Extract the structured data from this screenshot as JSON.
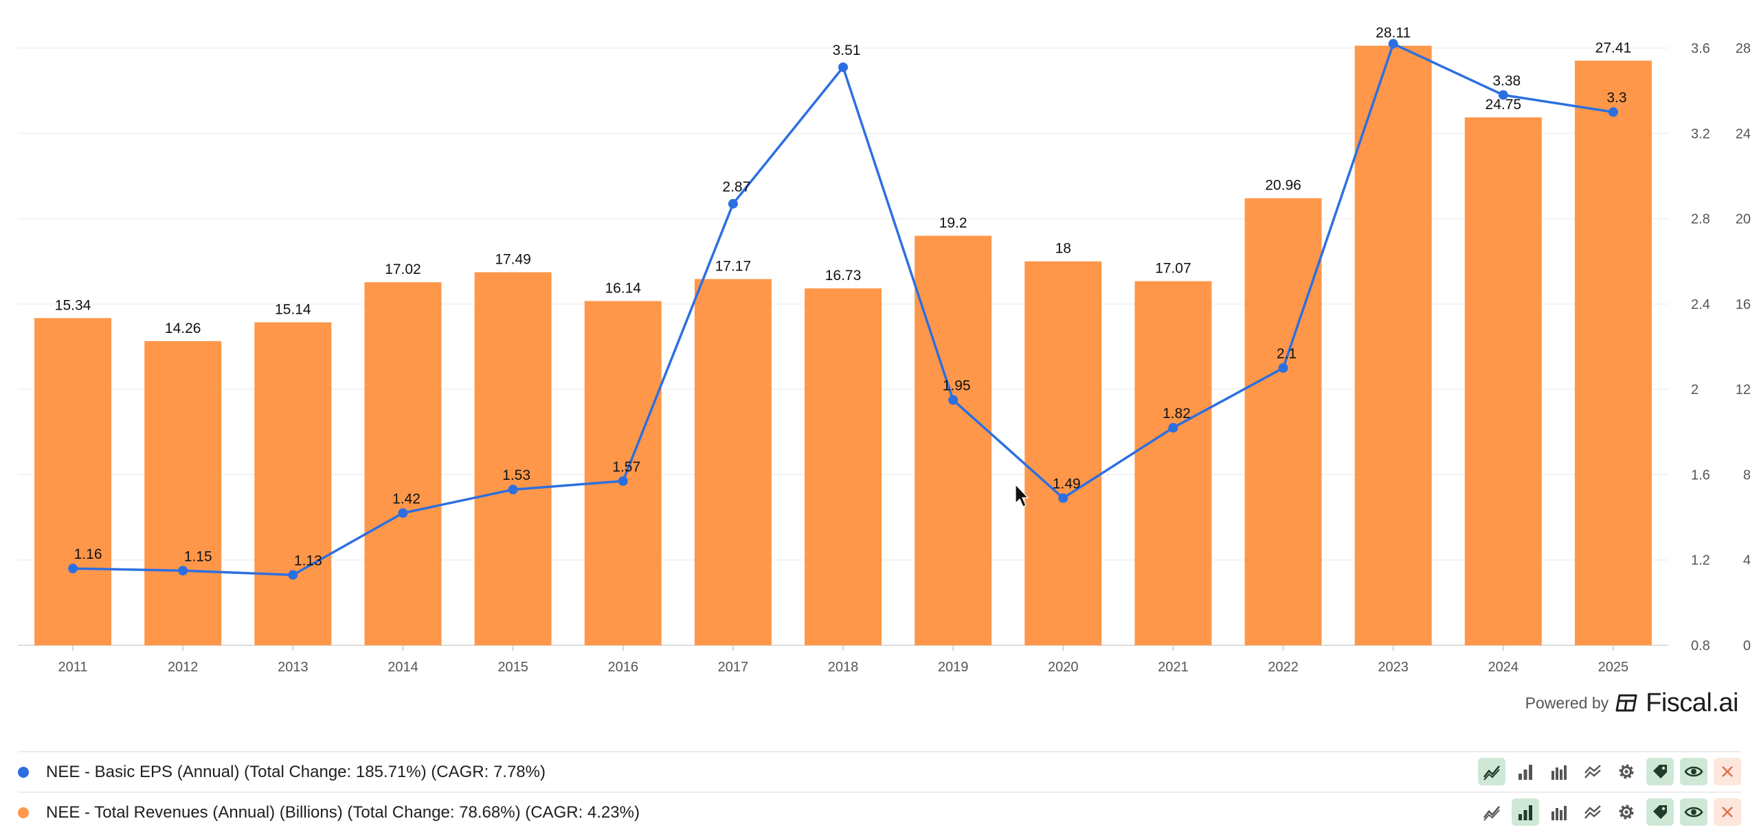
{
  "chart_data": {
    "type": "bar+line",
    "categories": [
      "2011",
      "2012",
      "2013",
      "2014",
      "2015",
      "2016",
      "2017",
      "2018",
      "2019",
      "2020",
      "2021",
      "2022",
      "2023",
      "2024",
      "2025"
    ],
    "series": [
      {
        "name": "NEE - Total Revenues (Annual) (Billions) (Total Change: 78.68%) (CAGR: 4.23%)",
        "kind": "bar",
        "axis": "right-outer",
        "values": [
          15.34,
          14.26,
          15.14,
          17.02,
          17.49,
          16.14,
          17.17,
          16.73,
          19.2,
          18,
          17.07,
          20.96,
          28.11,
          24.75,
          27.41
        ],
        "labels": [
          "15.34",
          "14.26",
          "15.14",
          "17.02",
          "17.49",
          "16.14",
          "17.17",
          "16.73",
          "19.2",
          "18",
          "17.07",
          "20.96",
          "28.11",
          "24.75",
          "27.41"
        ],
        "color": "#ff974a"
      },
      {
        "name": "NEE - Basic EPS (Annual) (Total Change: 185.71%) (CAGR: 7.78%)",
        "kind": "line",
        "axis": "right-inner",
        "values": [
          1.16,
          1.15,
          1.13,
          1.42,
          1.53,
          1.57,
          2.87,
          3.51,
          1.95,
          1.49,
          1.82,
          2.1,
          3.62,
          3.38,
          3.3
        ],
        "labels": [
          "1.16",
          "1.15",
          "1.13",
          "1.42",
          "1.53",
          "1.57",
          "2.87",
          "3.51",
          "1.95",
          "1.49",
          "1.82",
          "2.1",
          "",
          "3.38",
          "3.3"
        ],
        "color": "#2c6fe0"
      }
    ],
    "y_eps": {
      "min": 0.8,
      "max": 3.6,
      "ticks": [
        "0.8",
        "1.2",
        "1.6",
        "2",
        "2.4",
        "2.8",
        "3.2",
        "3.6"
      ]
    },
    "y_rev": {
      "min": 0,
      "max": 28,
      "ticks": [
        "0",
        "4",
        "8",
        "12",
        "16",
        "20",
        "24",
        "28"
      ]
    },
    "grid": true
  },
  "branding": {
    "powered_by": "Powered by",
    "name": "Fiscal.ai"
  },
  "legend": [
    {
      "label": "NEE - Basic EPS (Annual) (Total Change: 185.71%) (CAGR: 7.78%)",
      "color": "#2c6fe0",
      "active_tool": "line"
    },
    {
      "label": "NEE - Total Revenues (Annual) (Billions) (Total Change: 78.68%) (CAGR: 4.23%)",
      "color": "#ff974a",
      "active_tool": "bar"
    }
  ],
  "tool_icons": [
    "line-chart-icon",
    "bar-chart-icon",
    "grouped-bar-icon",
    "area-chart-icon",
    "gear-icon",
    "tag-icon",
    "eye-icon",
    "close-icon"
  ]
}
